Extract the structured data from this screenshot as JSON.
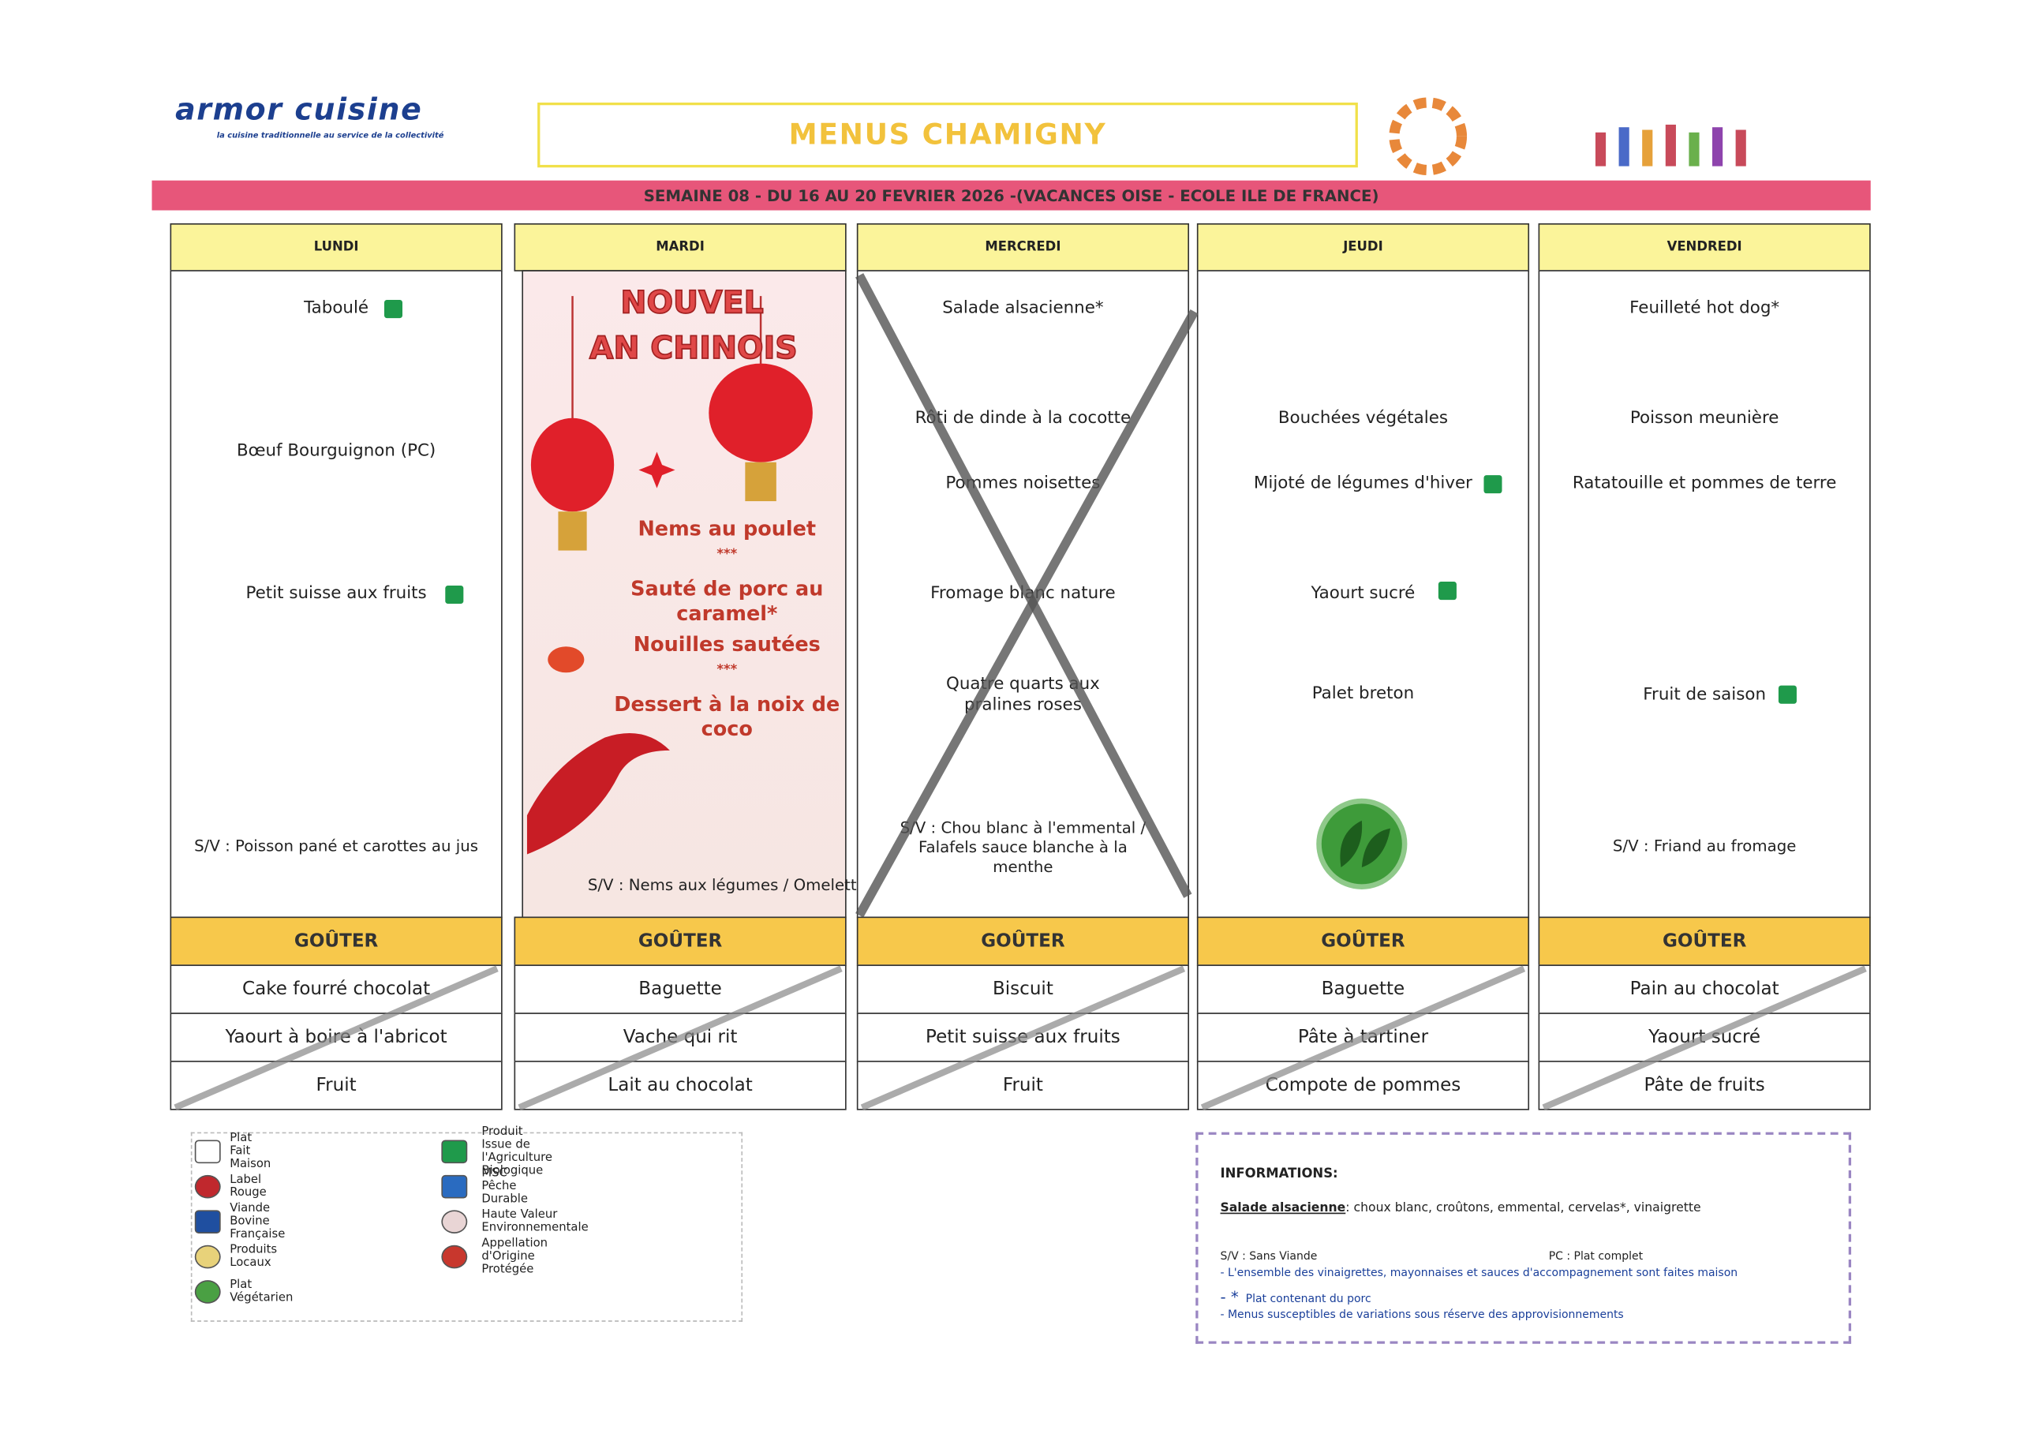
{
  "header": {
    "logo": "armor cuisine",
    "tagline": "la cuisine traditionnelle au service de la collectivité",
    "title": "MENUS CHAMIGNY",
    "week": "SEMAINE 08  - DU 16 AU 20 FEVRIER 2026 -(VACANCES OISE - ECOLE ILE DE FRANCE)"
  },
  "gouter_title": "GOÛTER",
  "days": [
    {
      "name": "LUNDI",
      "items": [
        "Taboulé",
        "Bœuf Bourguignon (PC)",
        "Petit suisse aux fruits",
        "S/V : Poisson pané et carottes au jus"
      ],
      "gouter": [
        "Cake fourré chocolat",
        "Yaourt à boire à l'abricot",
        "Fruit"
      ]
    },
    {
      "name": "MARDI",
      "theme": [
        "NOUVEL",
        "AN CHINOIS"
      ],
      "items": [
        "Nems au poulet",
        "***",
        "Sauté de porc au caramel*",
        "Nouilles sautées",
        "***",
        "Dessert à la noix de coco",
        "S/V : Nems aux légumes / Omelette"
      ],
      "gouter": [
        "Baguette",
        "Vache qui rit",
        "Lait au chocolat"
      ]
    },
    {
      "name": "MERCREDI",
      "items": [
        "Salade alsacienne*",
        "Rôti de dinde à la cocotte",
        "Pommes noisettes",
        "Fromage blanc nature",
        "Quatre quarts aux pralines roses",
        "S/V : Chou blanc à l'emmental / Falafels sauce blanche à la menthe"
      ],
      "gouter": [
        "Biscuit",
        "Petit suisse aux fruits",
        "Fruit"
      ]
    },
    {
      "name": "JEUDI",
      "items": [
        "Bouchées végétales",
        "Mijoté de légumes d'hiver",
        "Yaourt sucré",
        "Palet breton"
      ],
      "gouter": [
        "Baguette",
        "Pâte à tartiner",
        "Compote de pommes"
      ]
    },
    {
      "name": "VENDREDI",
      "items": [
        "Feuilleté hot dog*",
        "Poisson meunière",
        "Ratatouille et pommes de terre",
        "Fruit de saison",
        "S/V :  Friand au fromage"
      ],
      "gouter": [
        "Pain au chocolat",
        "Yaourt sucré",
        "Pâte de fruits"
      ]
    }
  ],
  "legend": [
    "Plat Fait Maison",
    "Label Rouge",
    "Viande Bovine Française",
    "Produits Locaux",
    "Plat Végétarien",
    "Produit Issue de l'Agriculture Biologique",
    "MSC Pêche Durable",
    "Haute Valeur Environnementale",
    "Appellation d'Origine Protégée"
  ],
  "info": {
    "title": "INFORMATIONS:",
    "salade_name": "Salade alsacienne",
    "salade_text": ": choux blanc, croûtons, emmental, cervelas*, vinaigrette",
    "sv": "S/V : Sans Viande",
    "pc": "PC : Plat complet",
    "notes": [
      "- L'ensemble des vinaigrettes, mayonnaises et sauces d'accompagnement sont faites maison",
      "Plat contenant du porc",
      "- Menus susceptibles de variations sous réserve des approvisionnements"
    ]
  }
}
